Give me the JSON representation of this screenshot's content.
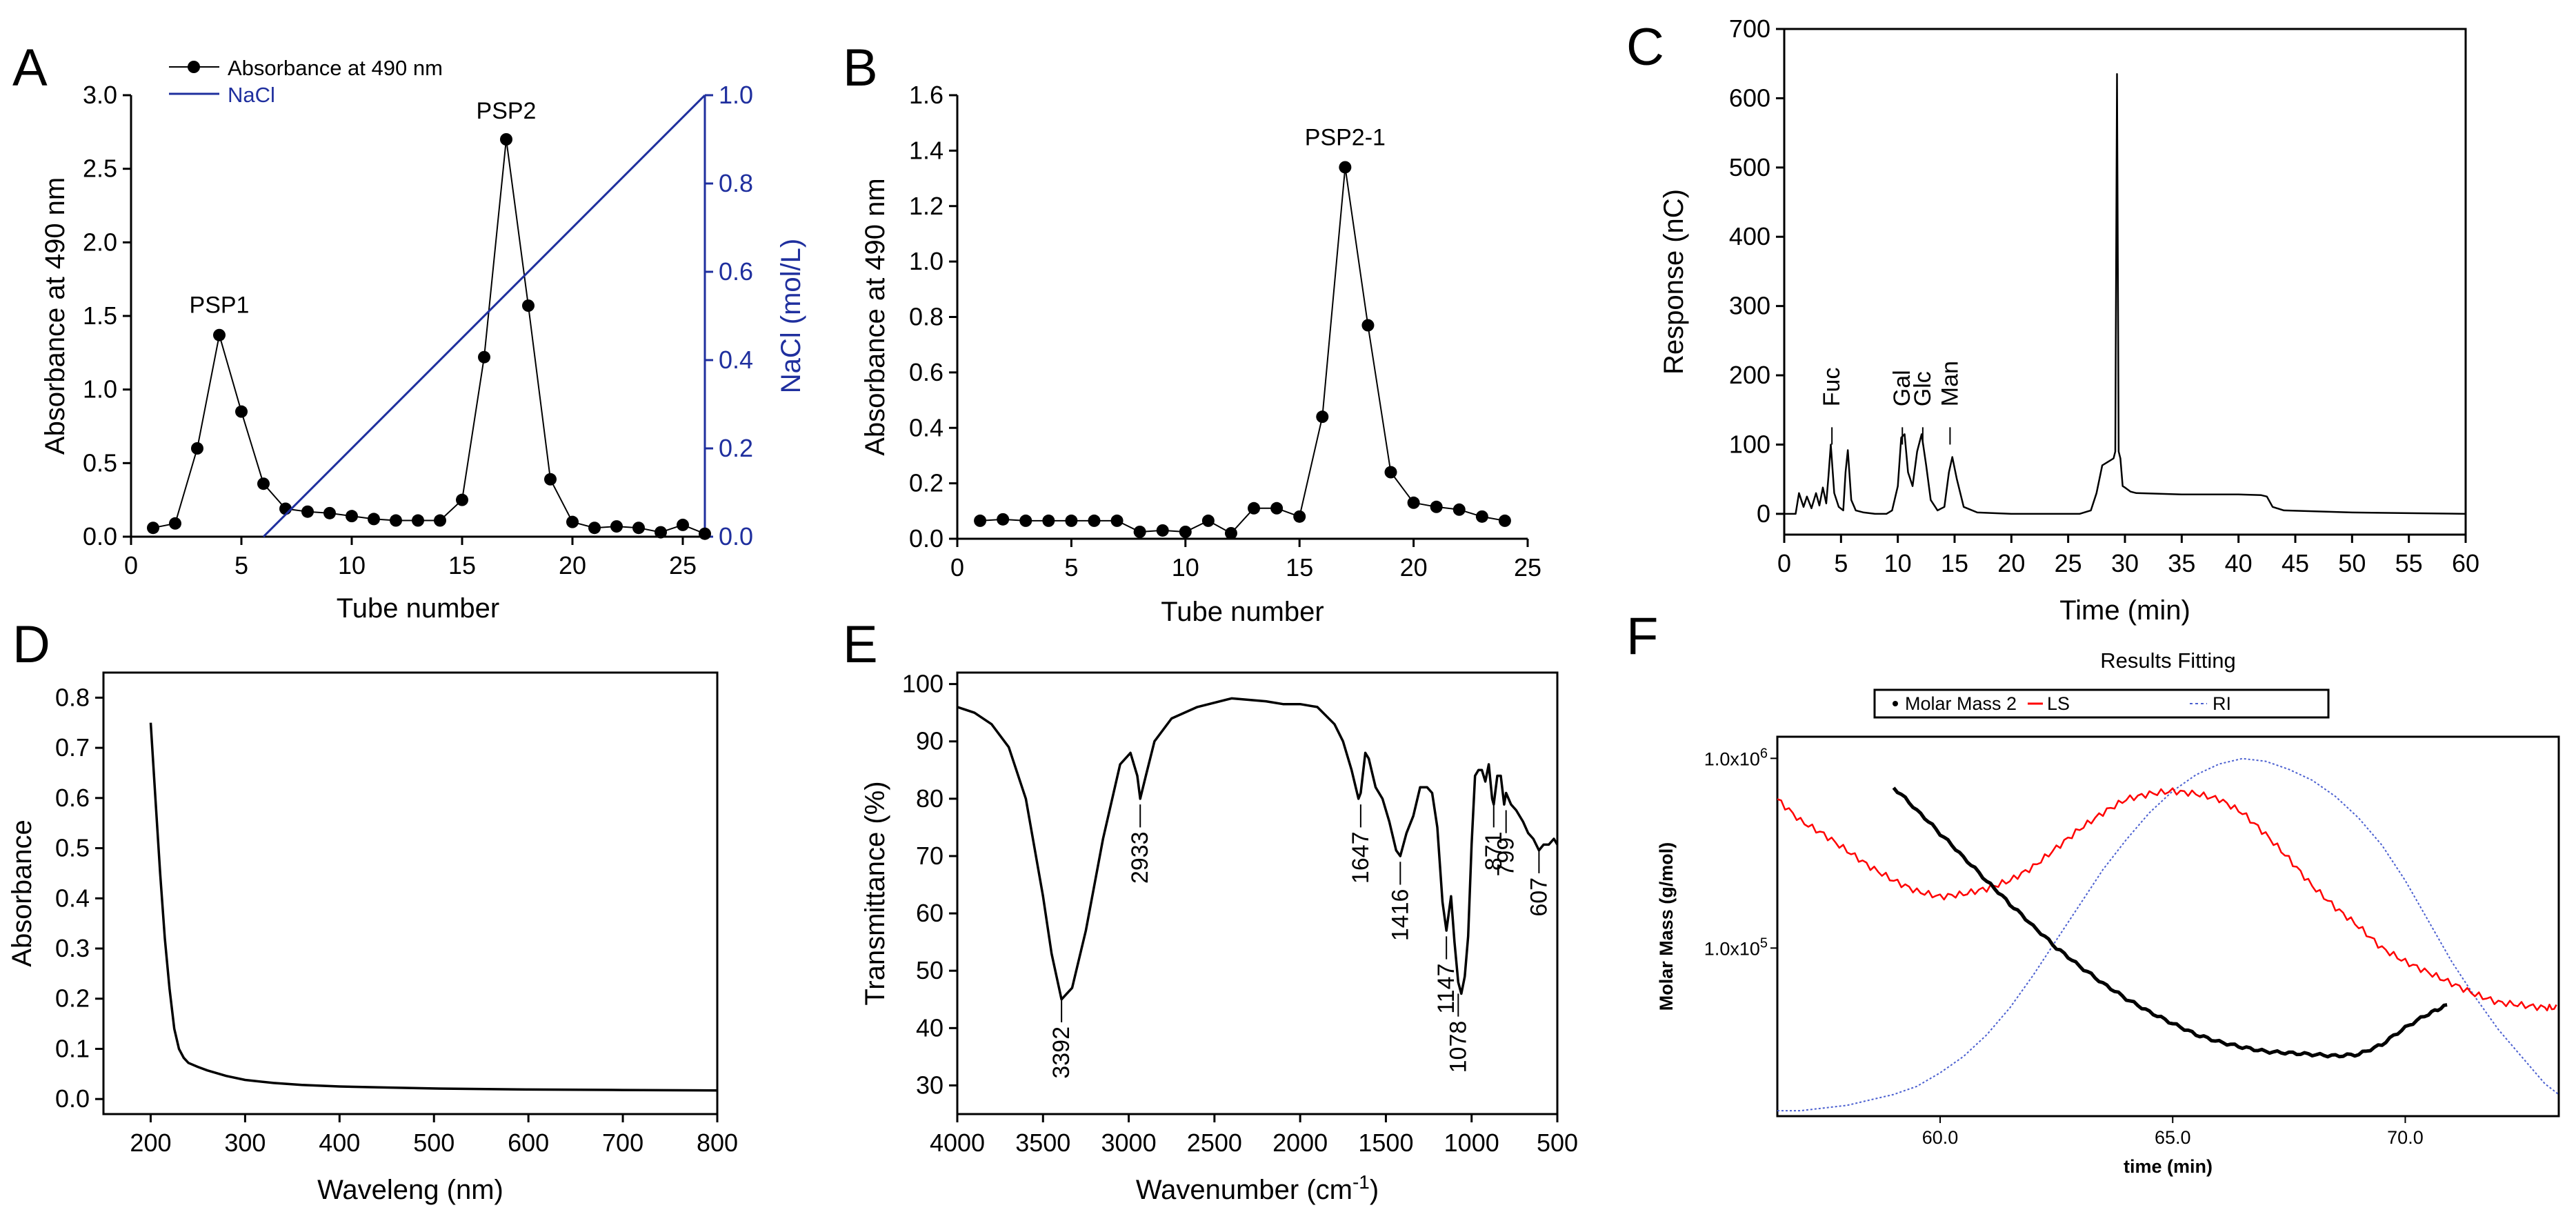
{
  "figure": {
    "background": "#ffffff",
    "panel_letters": [
      "A",
      "B",
      "C",
      "D",
      "E",
      "F"
    ]
  },
  "chart_data": [
    {
      "id": "A",
      "type": "line",
      "xlabel": "Tube number",
      "ylabel": "Absorbance at 490 nm",
      "ylabel_right": "NaCl (mol/L)",
      "xlim": [
        0,
        26
      ],
      "ylim": [
        0,
        3.0
      ],
      "ylim_right": [
        0,
        1.0
      ],
      "xticks": [
        0,
        5,
        10,
        15,
        20,
        25
      ],
      "yticks": [
        "0.0",
        "0.5",
        "1.0",
        "1.5",
        "2.0",
        "2.5",
        "3.0"
      ],
      "yticks_right": [
        "0.0",
        "0.2",
        "0.4",
        "0.6",
        "0.8",
        "1.0"
      ],
      "legend": {
        "position": "top-left",
        "entries": [
          "Absorbance at 490 nm",
          "NaCl"
        ]
      },
      "annotations": [
        {
          "text": "PSP1",
          "x": 4,
          "y": 1.38
        },
        {
          "text": "PSP2",
          "x": 17,
          "y": 2.7
        }
      ],
      "series": [
        {
          "name": "Absorbance at 490 nm",
          "axis": "left",
          "color": "#000000",
          "marker": "circle",
          "x": [
            1,
            2,
            3,
            4,
            5,
            6,
            7,
            8,
            9,
            10,
            11,
            12,
            13,
            14,
            15,
            16,
            17,
            18,
            19,
            20,
            21,
            22,
            23,
            24,
            25,
            26
          ],
          "y": [
            0.06,
            0.09,
            0.6,
            1.37,
            0.85,
            0.36,
            0.19,
            0.17,
            0.16,
            0.14,
            0.12,
            0.11,
            0.11,
            0.11,
            0.25,
            1.22,
            2.7,
            1.57,
            0.39,
            0.1,
            0.06,
            0.07,
            0.06,
            0.03,
            0.08,
            0.02
          ]
        },
        {
          "name": "NaCl",
          "axis": "right",
          "color": "#1f2f9e",
          "marker": "none",
          "x": [
            6,
            26
          ],
          "y": [
            0,
            1.0
          ]
        }
      ]
    },
    {
      "id": "B",
      "type": "line",
      "xlabel": "Tube number",
      "ylabel": "Absorbance at 490 nm",
      "xlim": [
        0,
        25
      ],
      "ylim": [
        0,
        1.6
      ],
      "xticks": [
        0,
        5,
        10,
        15,
        20,
        25
      ],
      "yticks": [
        "0.0",
        "0.2",
        "0.4",
        "0.6",
        "0.8",
        "1.0",
        "1.2",
        "1.4",
        "1.6"
      ],
      "annotations": [
        {
          "text": "PSP2-1",
          "x": 17,
          "y": 1.34
        }
      ],
      "series": [
        {
          "color": "#000000",
          "marker": "circle",
          "x": [
            1,
            2,
            3,
            4,
            5,
            6,
            7,
            8,
            9,
            10,
            11,
            12,
            13,
            14,
            15,
            16,
            17,
            18,
            19,
            20,
            21,
            22,
            23,
            24
          ],
          "y": [
            0.065,
            0.07,
            0.065,
            0.065,
            0.065,
            0.065,
            0.065,
            0.025,
            0.03,
            0.025,
            0.065,
            0.02,
            0.11,
            0.11,
            0.08,
            0.44,
            1.34,
            0.77,
            0.24,
            0.13,
            0.115,
            0.105,
            0.08,
            0.065
          ]
        }
      ]
    },
    {
      "id": "C",
      "type": "line",
      "xlabel": "Time (min)",
      "ylabel": "Response (nC)",
      "xlim": [
        0,
        60
      ],
      "ylim": [
        -30,
        700
      ],
      "xticks": [
        0,
        5,
        10,
        15,
        20,
        25,
        30,
        35,
        40,
        45,
        50,
        55,
        60
      ],
      "yticks": [
        0,
        100,
        200,
        300,
        400,
        500,
        600,
        700
      ],
      "peak_labels": [
        {
          "text": "Fuc",
          "x": 4.2
        },
        {
          "text": "Gal",
          "x": 10.4
        },
        {
          "text": "Glc",
          "x": 12.2
        },
        {
          "text": "Man",
          "x": 14.6
        }
      ],
      "series": [
        {
          "color": "#000000",
          "x": [
            0,
            1,
            1.3,
            1.7,
            2,
            2.4,
            2.8,
            3.1,
            3.4,
            3.7,
            3.9,
            4.1,
            4.4,
            4.8,
            5.2,
            5.4,
            5.6,
            5.9,
            6.3,
            7,
            8,
            9,
            9.5,
            10,
            10.3,
            10.6,
            10.9,
            11.3,
            11.7,
            12.1,
            12.5,
            12.9,
            13.5,
            14.1,
            14.5,
            14.8,
            15.2,
            15.8,
            17,
            20,
            25,
            26,
            27,
            27.5,
            28,
            28.5,
            29,
            29.15,
            29.3,
            29.45,
            29.6,
            29.8,
            30,
            30.5,
            31,
            35,
            40,
            42,
            42.5,
            43,
            44,
            50,
            55,
            60
          ],
          "y": [
            0,
            0,
            30,
            10,
            25,
            8,
            30,
            12,
            38,
            15,
            55,
            100,
            30,
            10,
            5,
            60,
            92,
            20,
            5,
            2,
            0,
            0,
            5,
            40,
            110,
            115,
            60,
            40,
            90,
            115,
            70,
            20,
            5,
            10,
            60,
            82,
            50,
            10,
            2,
            0,
            0,
            0,
            5,
            30,
            70,
            75,
            80,
            90,
            635,
            90,
            80,
            40,
            38,
            32,
            30,
            28,
            28,
            27,
            25,
            10,
            5,
            2,
            1,
            0
          ]
        }
      ]
    },
    {
      "id": "D",
      "type": "line",
      "xlabel": "Waveleng (nm)",
      "ylabel": "Absorbance",
      "xlim": [
        150,
        800
      ],
      "ylim": [
        -0.03,
        0.85
      ],
      "xticks": [
        200,
        300,
        400,
        500,
        600,
        700,
        800
      ],
      "yticks": [
        "0.0",
        "0.1",
        "0.2",
        "0.3",
        "0.4",
        "0.5",
        "0.6",
        "0.7",
        "0.8"
      ],
      "series": [
        {
          "color": "#000000",
          "x": [
            200,
            205,
            210,
            215,
            220,
            225,
            230,
            235,
            240,
            250,
            260,
            280,
            300,
            330,
            360,
            400,
            450,
            500,
            600,
            700,
            800
          ],
          "y": [
            0.75,
            0.6,
            0.45,
            0.32,
            0.22,
            0.14,
            0.1,
            0.082,
            0.072,
            0.064,
            0.057,
            0.046,
            0.038,
            0.032,
            0.028,
            0.025,
            0.023,
            0.021,
            0.019,
            0.018,
            0.017
          ]
        }
      ]
    },
    {
      "id": "E",
      "type": "line",
      "xlabel": "Wavenumber (cm",
      "xlabel_superscript": "-1",
      "xlabel_suffix": ")",
      "ylabel": "Transmittance (%)",
      "xlim": [
        4000,
        500
      ],
      "ylim": [
        25,
        102
      ],
      "xticks": [
        4000,
        3500,
        3000,
        2500,
        2000,
        1500,
        1000,
        500
      ],
      "yticks": [
        30,
        40,
        50,
        60,
        70,
        80,
        90,
        100
      ],
      "peak_labels": [
        "3392",
        "2933",
        "1647",
        "1416",
        "1147",
        "1078",
        "871",
        "799",
        "607"
      ],
      "series": [
        {
          "color": "#000000",
          "x": [
            4000,
            3900,
            3800,
            3700,
            3600,
            3500,
            3450,
            3392,
            3330,
            3250,
            3150,
            3050,
            2990,
            2950,
            2933,
            2900,
            2850,
            2750,
            2600,
            2400,
            2200,
            2100,
            2000,
            1900,
            1800,
            1750,
            1700,
            1660,
            1647,
            1620,
            1600,
            1560,
            1520,
            1480,
            1440,
            1416,
            1380,
            1340,
            1300,
            1260,
            1230,
            1200,
            1170,
            1147,
            1120,
            1100,
            1078,
            1060,
            1040,
            1020,
            1000,
            980,
            960,
            940,
            920,
            900,
            880,
            871,
            850,
            830,
            810,
            799,
            770,
            740,
            700,
            670,
            640,
            607,
            580,
            550,
            520,
            500
          ],
          "y": [
            96,
            95,
            93,
            89,
            80,
            63,
            53,
            45,
            47,
            57,
            73,
            86,
            88,
            84,
            80,
            84,
            90,
            94,
            96,
            97.5,
            97,
            96.5,
            96.5,
            96,
            93,
            90,
            85,
            80,
            81,
            88,
            87,
            82,
            80,
            76,
            71,
            70,
            74,
            77,
            82,
            82,
            81,
            75,
            62,
            57,
            63,
            55,
            48,
            46,
            49,
            56,
            72,
            84,
            85,
            85,
            83,
            86,
            80,
            79,
            84,
            84,
            79,
            81,
            79,
            78,
            76,
            74,
            73,
            71,
            72,
            72,
            73,
            72
          ]
        }
      ]
    },
    {
      "id": "F",
      "type": "line",
      "title": "Results Fitting",
      "xlabel": "time (min)",
      "ylabel": "Molar Mass (g/mol)",
      "xlim": [
        56.5,
        73.3
      ],
      "y_scale": "log",
      "ylim": [
        13000,
        1300000
      ],
      "xticks": [
        "60.0",
        "65.0",
        "70.0"
      ],
      "ytick_labels": [
        {
          "base": "1.0x10",
          "exp": "6",
          "value": 1000000
        },
        {
          "base": "1.0x10",
          "exp": "5",
          "value": 100000
        }
      ],
      "legend": {
        "position": "top",
        "entries": [
          "Molar Mass 2",
          "LS",
          "RI"
        ]
      },
      "series": [
        {
          "name": "Molar Mass 2",
          "color": "#000000",
          "unit": "g/mol",
          "x": [
            59,
            59.5,
            60,
            60.5,
            61,
            61.5,
            62,
            62.5,
            63,
            63.5,
            64,
            64.5,
            65,
            65.5,
            66,
            66.5,
            67,
            67.5,
            68,
            68.5,
            69,
            69.5,
            70,
            70.5,
            70.9
          ],
          "y": [
            700000,
            530000,
            400000,
            300000,
            225000,
            170000,
            130000,
            100000,
            80000,
            65000,
            54000,
            46000,
            40000,
            35000,
            32000,
            30000,
            28500,
            28000,
            27500,
            27000,
            27500,
            31000,
            38000,
            45000,
            50000
          ]
        },
        {
          "name": "LS",
          "color": "#ff0000",
          "unit": "relative",
          "x": [
            56.5,
            57,
            57.5,
            58,
            58.5,
            59,
            59.5,
            60,
            60.5,
            61,
            61.5,
            62,
            62.5,
            63,
            63.5,
            64,
            64.5,
            65,
            65.5,
            66,
            66.5,
            67,
            67.5,
            68,
            68.5,
            69,
            69.5,
            70,
            70.5,
            71,
            71.5,
            72,
            72.5,
            73,
            73.3
          ],
          "y": [
            0.85,
            0.77,
            0.72,
            0.66,
            0.6,
            0.55,
            0.51,
            0.49,
            0.5,
            0.52,
            0.55,
            0.6,
            0.67,
            0.74,
            0.8,
            0.85,
            0.87,
            0.88,
            0.87,
            0.85,
            0.8,
            0.72,
            0.63,
            0.53,
            0.45,
            0.38,
            0.3,
            0.25,
            0.21,
            0.17,
            0.13,
            0.1,
            0.09,
            0.08,
            0.08
          ]
        },
        {
          "name": "RI",
          "color": "#4a5fd0",
          "unit": "relative",
          "x": [
            56.5,
            57,
            57.5,
            58,
            58.5,
            59,
            59.5,
            60,
            60.5,
            61,
            61.5,
            62,
            62.5,
            63,
            63.5,
            64,
            64.5,
            65,
            65.5,
            66,
            66.5,
            67,
            67.5,
            68,
            68.5,
            69,
            69.5,
            70,
            70.5,
            71,
            71.5,
            72,
            72.5,
            73,
            73.3
          ],
          "y": [
            -0.3,
            -0.3,
            -0.29,
            -0.28,
            -0.26,
            -0.24,
            -0.21,
            -0.16,
            -0.1,
            -0.02,
            0.08,
            0.2,
            0.33,
            0.46,
            0.59,
            0.7,
            0.8,
            0.88,
            0.94,
            0.98,
            1.0,
            0.99,
            0.96,
            0.92,
            0.86,
            0.78,
            0.68,
            0.55,
            0.4,
            0.25,
            0.12,
            0.0,
            -0.1,
            -0.2,
            -0.24
          ]
        }
      ]
    }
  ]
}
